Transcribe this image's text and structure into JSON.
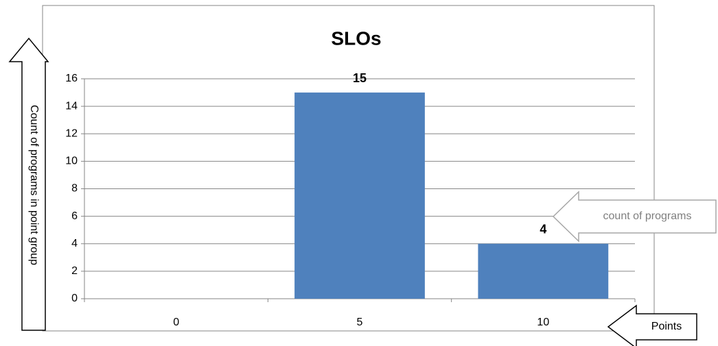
{
  "chart_data": {
    "type": "bar",
    "title": "SLOs",
    "categories": [
      "0",
      "5",
      "10"
    ],
    "values": [
      null,
      15,
      4
    ],
    "color": "#4f81bd",
    "ylim": [
      0,
      16
    ],
    "yticks": [
      0,
      2,
      4,
      6,
      8,
      10,
      12,
      14,
      16
    ],
    "grid": true,
    "annotations": {
      "y_axis_note": "Count of programs in point group",
      "bar_note": "count of programs",
      "x_axis_note": "Points"
    }
  }
}
